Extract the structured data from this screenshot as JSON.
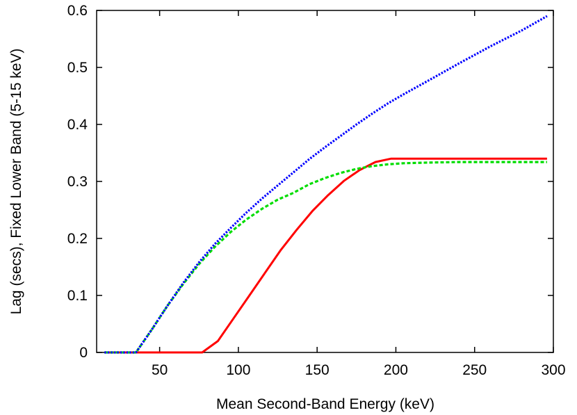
{
  "chart_data": {
    "type": "line",
    "title": "",
    "xlabel": "Mean Second-Band Energy (keV)",
    "ylabel": "Lag (secs), Fixed Lower Band (5-15 keV)",
    "xlim": [
      10,
      300
    ],
    "ylim": [
      0,
      0.6
    ],
    "xticks": [
      50,
      100,
      150,
      200,
      250,
      300
    ],
    "yticks": [
      0,
      0.1,
      0.2,
      0.3,
      0.4,
      0.5,
      0.6
    ],
    "grid": false,
    "legend": "none",
    "series": [
      {
        "color": "#ff0000",
        "style": "solid",
        "x": [
          15,
          25,
          35,
          45,
          55,
          65,
          75,
          77,
          87,
          97,
          107,
          117,
          127,
          137,
          147,
          157,
          167,
          177,
          187,
          197,
          210,
          230,
          250,
          270,
          296
        ],
        "y": [
          0,
          0,
          0,
          0,
          0,
          0,
          0,
          0,
          0.02,
          0.06,
          0.1,
          0.14,
          0.18,
          0.215,
          0.248,
          0.276,
          0.301,
          0.32,
          0.334,
          0.34,
          0.34,
          0.34,
          0.34,
          0.34,
          0.34
        ]
      },
      {
        "color": "#00dd00",
        "style": "dashed",
        "x": [
          15,
          25,
          35,
          45,
          55,
          65,
          75,
          85,
          95,
          105,
          115,
          125,
          135,
          145,
          155,
          165,
          175,
          185,
          195,
          205,
          220,
          240,
          260,
          280,
          296
        ],
        "y": [
          0,
          0,
          0,
          0.04,
          0.082,
          0.12,
          0.155,
          0.185,
          0.211,
          0.233,
          0.252,
          0.268,
          0.28,
          0.295,
          0.306,
          0.315,
          0.322,
          0.327,
          0.33,
          0.332,
          0.333,
          0.334,
          0.334,
          0.334,
          0.334
        ]
      },
      {
        "color": "#0000ff",
        "style": "dotted",
        "x": [
          15,
          25,
          35,
          45,
          55,
          65,
          75,
          85,
          95,
          105,
          115,
          125,
          135,
          145,
          155,
          165,
          175,
          185,
          195,
          205,
          220,
          240,
          260,
          280,
          296
        ],
        "y": [
          0,
          0,
          0,
          0.04,
          0.082,
          0.122,
          0.158,
          0.19,
          0.218,
          0.245,
          0.27,
          0.293,
          0.316,
          0.339,
          0.36,
          0.38,
          0.4,
          0.419,
          0.437,
          0.453,
          0.476,
          0.507,
          0.537,
          0.565,
          0.59
        ]
      }
    ]
  }
}
